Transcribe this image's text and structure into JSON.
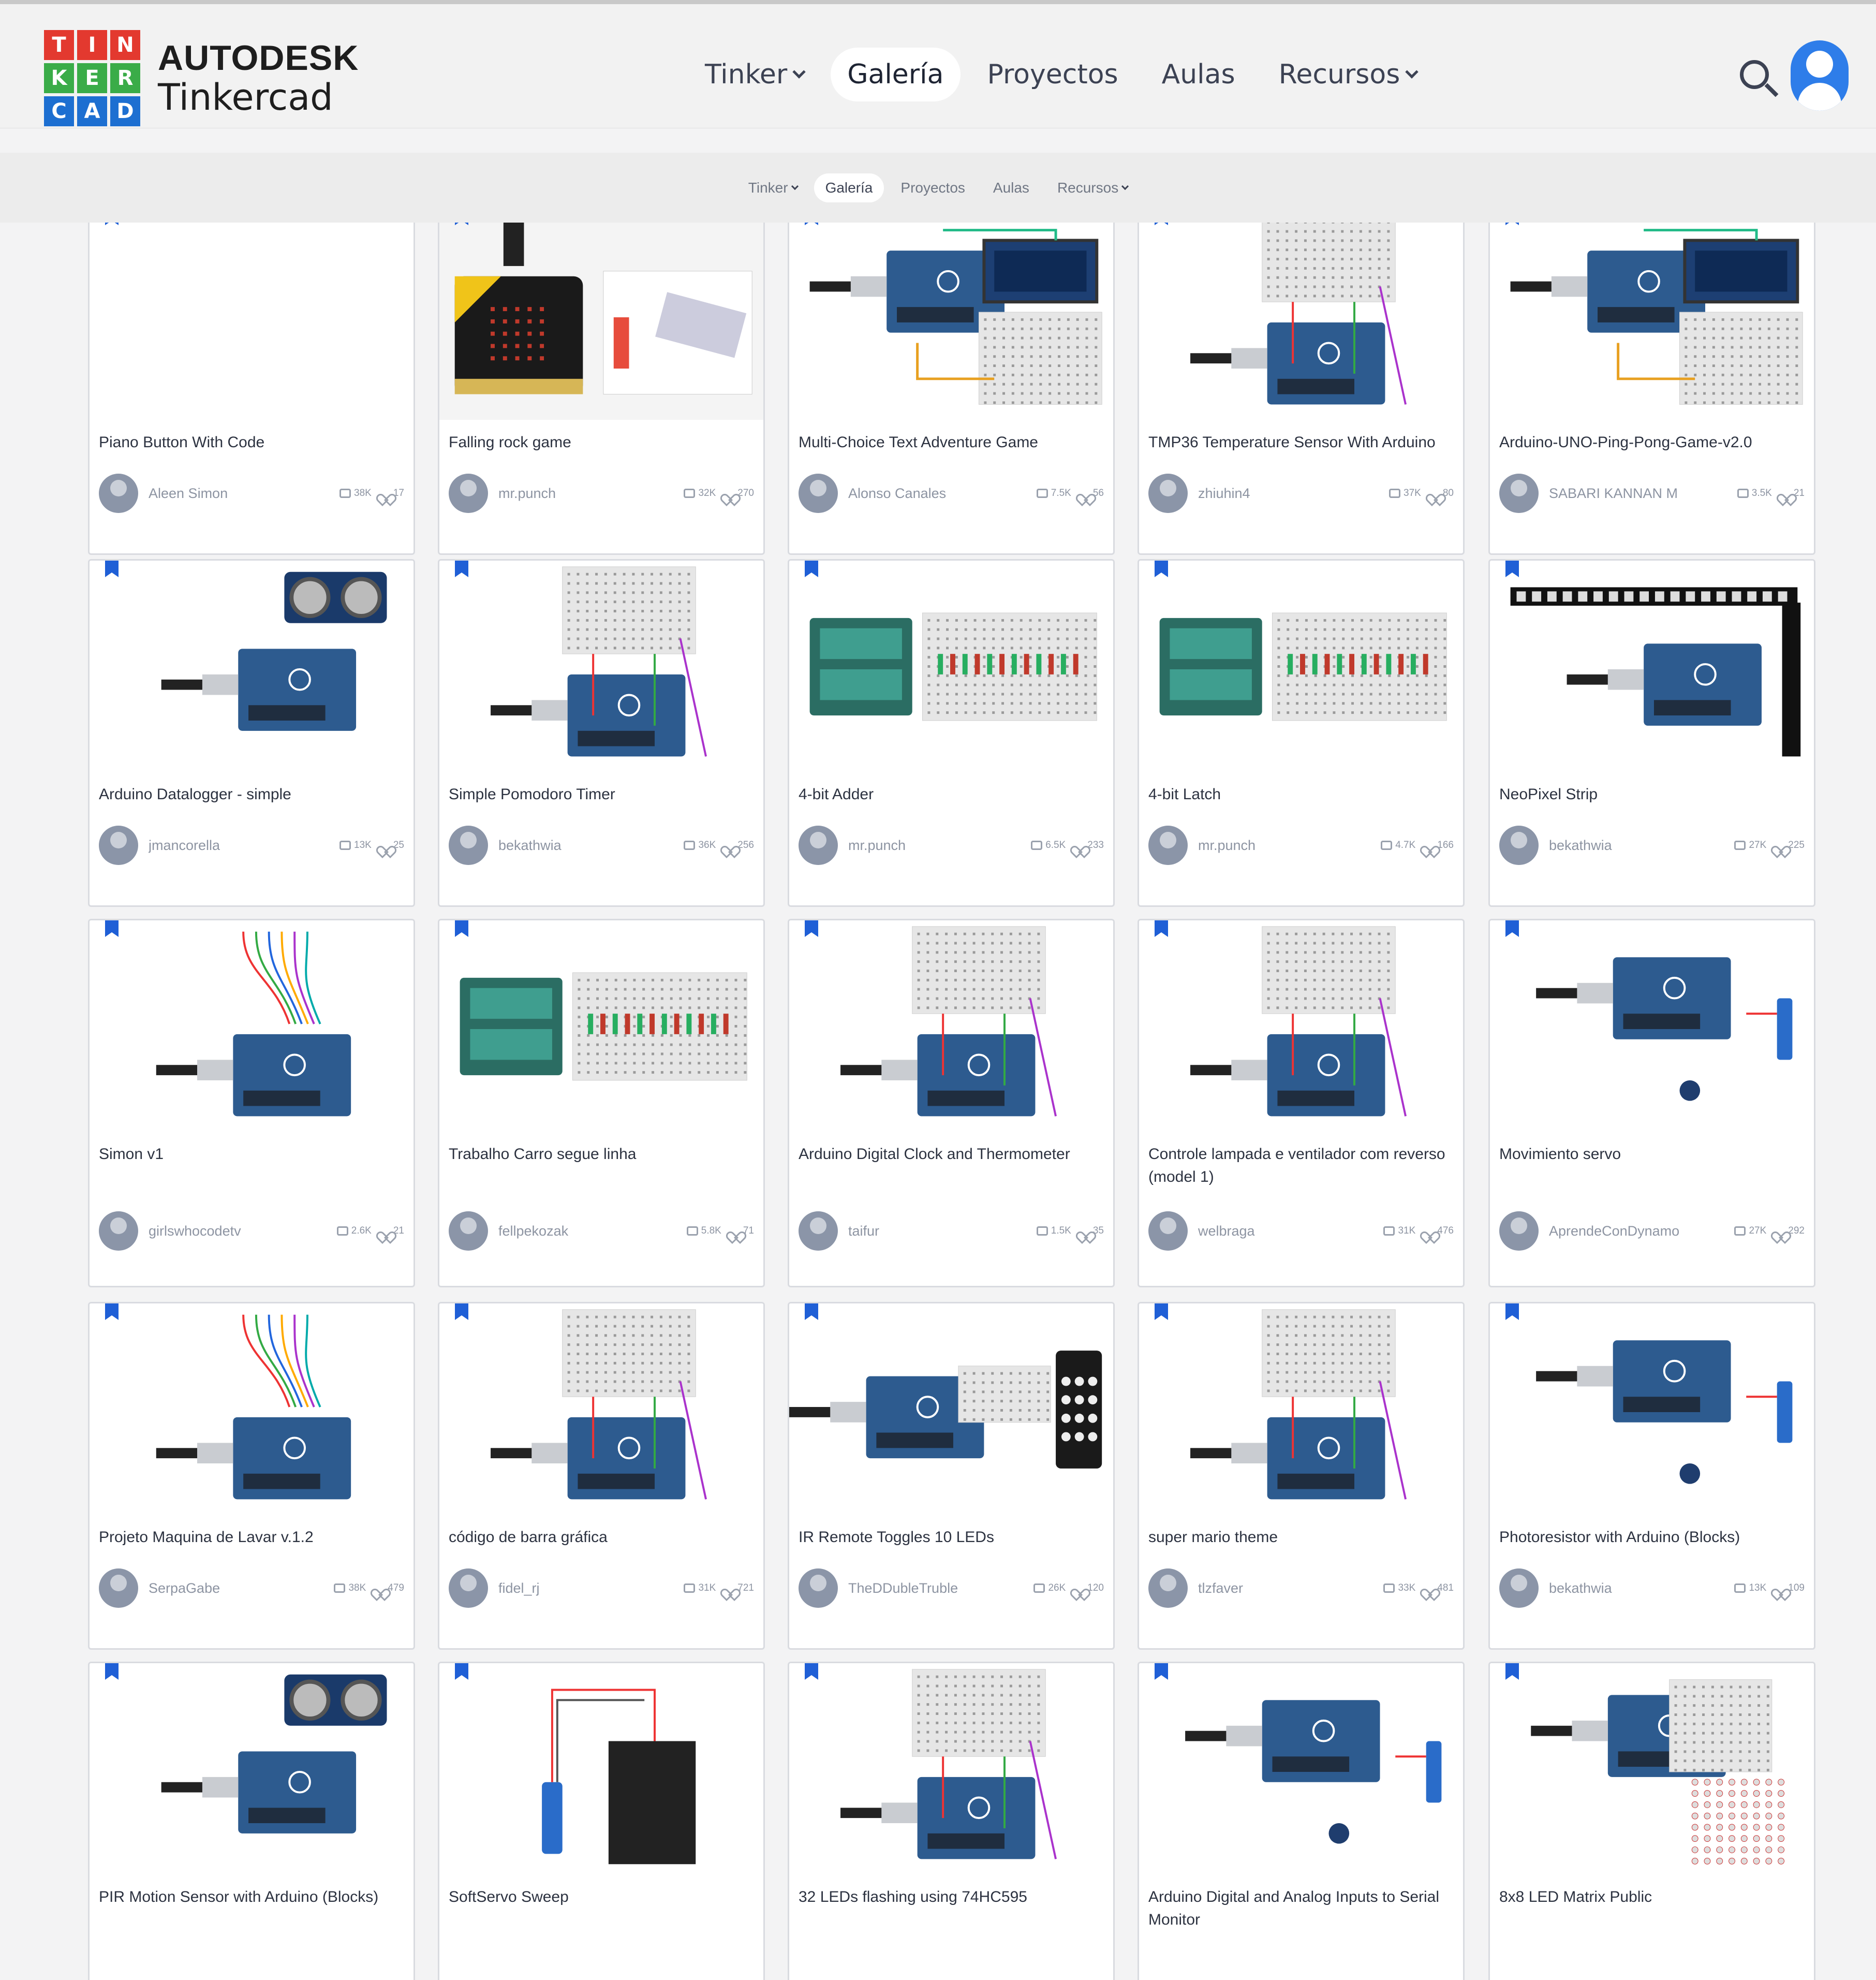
{
  "header": {
    "logo_letters": [
      "T",
      "I",
      "N",
      "K",
      "E",
      "R",
      "C",
      "A",
      "D"
    ],
    "brand_line1": "AUTODESK",
    "brand_line2": "Tinkercad",
    "nav": [
      {
        "label": "Tinker",
        "dropdown": true,
        "active": false
      },
      {
        "label": "Galería",
        "dropdown": false,
        "active": true
      },
      {
        "label": "Proyectos",
        "dropdown": false,
        "active": false
      },
      {
        "label": "Aulas",
        "dropdown": false,
        "active": false
      },
      {
        "label": "Recursos",
        "dropdown": true,
        "active": false
      }
    ]
  },
  "subnav": [
    {
      "label": "Tinker",
      "dropdown": true,
      "active": false
    },
    {
      "label": "Galería",
      "dropdown": false,
      "active": true
    },
    {
      "label": "Proyectos",
      "dropdown": false,
      "active": false
    },
    {
      "label": "Aulas",
      "dropdown": false,
      "active": false
    },
    {
      "label": "Recursos",
      "dropdown": true,
      "active": false
    }
  ],
  "colors": {
    "logo_red": "#e3392f",
    "logo_green": "#3aac48",
    "logo_blue": "#1d6fd1",
    "accent_blue": "#1f5fd6",
    "arduino_blue": "#2d5b8f"
  },
  "projects": [
    {
      "title": "Piano Button With Code",
      "user": "Aleen Simon",
      "copies": "38K",
      "likes": "17",
      "thumb": "blank"
    },
    {
      "title": "Falling rock game",
      "user": "mr.punch",
      "copies": "32K",
      "likes": "270",
      "thumb": "microbit"
    },
    {
      "title": "Multi-Choice Text Adventure Game",
      "user": "Alonso Canales",
      "copies": "7.5K",
      "likes": "56",
      "thumb": "lcd"
    },
    {
      "title": "TMP36 Temperature Sensor With Arduino",
      "user": "zhiuhin4",
      "copies": "37K",
      "likes": "80",
      "thumb": "breadboard"
    },
    {
      "title": "Arduino-UNO-Ping-Pong-Game-v2.0",
      "user": "SABARI KANNAN M",
      "copies": "3.5K",
      "likes": "21",
      "thumb": "lcd"
    },
    {
      "title": "Arduino Datalogger - simple",
      "user": "jmancorella",
      "copies": "13K",
      "likes": "25",
      "thumb": "ultrasonic"
    },
    {
      "title": "Simple Pomodoro Timer",
      "user": "bekathwia",
      "copies": "36K",
      "likes": "256",
      "thumb": "breadboard"
    },
    {
      "title": "4-bit Adder",
      "user": "mr.punch",
      "copies": "6.5K",
      "likes": "233",
      "thumb": "battery"
    },
    {
      "title": "4-bit Latch",
      "user": "mr.punch",
      "copies": "4.7K",
      "likes": "166",
      "thumb": "battery"
    },
    {
      "title": "NeoPixel Strip",
      "user": "bekathwia",
      "copies": "27K",
      "likes": "225",
      "thumb": "neopixel"
    },
    {
      "title": "Simon v1",
      "user": "girlswhocodetv",
      "copies": "2.6K",
      "likes": "21",
      "thumb": "wires"
    },
    {
      "title": "Trabalho Carro segue linha",
      "user": "fellpekozak",
      "copies": "5.8K",
      "likes": "71",
      "thumb": "battery"
    },
    {
      "title": "Arduino Digital Clock and Thermometer",
      "user": "taifur",
      "copies": "1.5K",
      "likes": "35",
      "thumb": "breadboard"
    },
    {
      "title": "Controle lampada e ventilador com reverso (model 1)",
      "user": "welbraga",
      "copies": "31K",
      "likes": "476",
      "thumb": "breadboard"
    },
    {
      "title": "Movimiento servo",
      "user": "AprendeConDynamo",
      "copies": "27K",
      "likes": "292",
      "thumb": "servo"
    },
    {
      "title": "Projeto Maquina de Lavar v.1.2",
      "user": "SerpaGabe",
      "copies": "38K",
      "likes": "479",
      "thumb": "wires"
    },
    {
      "title": "código de barra gráfica",
      "user": "fidel_rj",
      "copies": "31K",
      "likes": "721",
      "thumb": "breadboard"
    },
    {
      "title": "IR Remote Toggles 10 LEDs",
      "user": "TheDDubleTruble",
      "copies": "26K",
      "likes": "120",
      "thumb": "remote"
    },
    {
      "title": "super mario theme",
      "user": "tlzfaver",
      "copies": "33K",
      "likes": "481",
      "thumb": "breadboard"
    },
    {
      "title": "Photoresistor with Arduino (Blocks)",
      "user": "bekathwia",
      "copies": "13K",
      "likes": "109",
      "thumb": "servo"
    },
    {
      "title": "PIR Motion Sensor with Arduino (Blocks)",
      "user": "",
      "copies": "",
      "likes": "",
      "thumb": "ultrasonic"
    },
    {
      "title": "SoftServo Sweep",
      "user": "",
      "copies": "",
      "likes": "",
      "thumb": "softservo"
    },
    {
      "title": "32 LEDs flashing using 74HC595",
      "user": "",
      "copies": "",
      "likes": "",
      "thumb": "breadboard"
    },
    {
      "title": "Arduino Digital and Analog Inputs to Serial Monitor",
      "user": "",
      "copies": "",
      "likes": "",
      "thumb": "servo"
    },
    {
      "title": "8x8 LED Matrix Public",
      "user": "",
      "copies": "",
      "likes": "",
      "thumb": "matrix"
    }
  ]
}
